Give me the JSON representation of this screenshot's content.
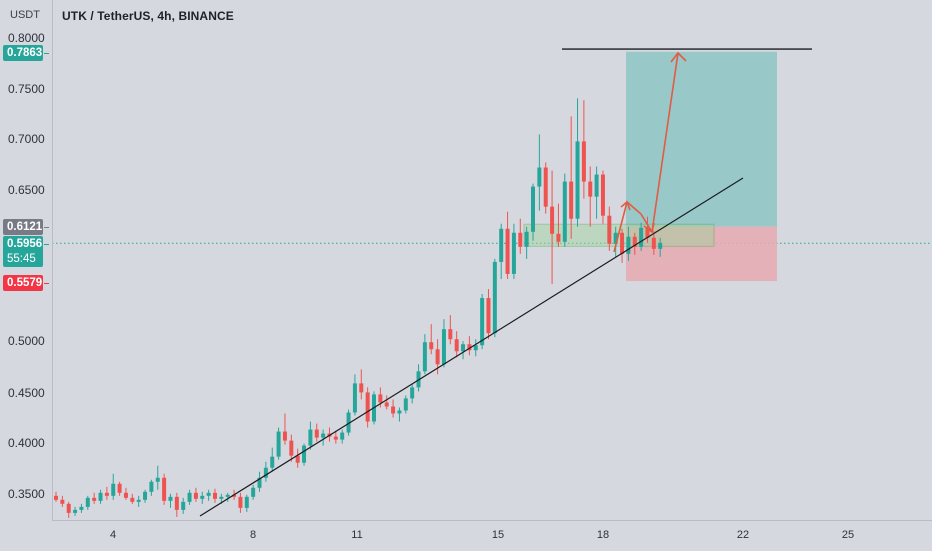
{
  "header": {
    "currency": "USDT",
    "title": "UTK / TetherUS, 4h, BINANCE"
  },
  "price_axis": {
    "ticks": [
      "0.8000",
      "0.7500",
      "0.7000",
      "0.6500",
      "0.5000",
      "0.4500",
      "0.4000",
      "0.3500"
    ],
    "tick_values": [
      0.8,
      0.75,
      0.7,
      0.65,
      0.5,
      0.45,
      0.4,
      0.35
    ]
  },
  "badges": {
    "target": {
      "value": "0.7863",
      "color": "#26a69a"
    },
    "entry": {
      "value": "0.6121",
      "color": "#787b86"
    },
    "last": {
      "value": "0.5956",
      "countdown": "55:45",
      "color": "#26a69a"
    },
    "stop": {
      "value": "0.5579",
      "color": "#f23645"
    }
  },
  "time_axis": {
    "ticks": [
      "4",
      "8",
      "11",
      "15",
      "18",
      "22",
      "25"
    ]
  },
  "colors": {
    "up": "#26a69a",
    "down": "#ef5350",
    "profit_zone": "#8ec6c4",
    "loss_zone": "#e5aab0",
    "trendline": "#1b1c20",
    "arrows": "#e05c45"
  },
  "chart_data": {
    "type": "candlestick",
    "title": "UTK / TetherUS, 4h, BINANCE",
    "ylabel": "USDT",
    "ylim": [
      0.322,
      0.82
    ],
    "x_ticks": [
      "4",
      "8",
      "11",
      "15",
      "18",
      "22",
      "25"
    ],
    "candles": [
      [
        0.344,
        0.348,
        0.338,
        0.34
      ],
      [
        0.34,
        0.344,
        0.333,
        0.336
      ],
      [
        0.336,
        0.338,
        0.322,
        0.327
      ],
      [
        0.327,
        0.333,
        0.324,
        0.33
      ],
      [
        0.33,
        0.336,
        0.327,
        0.333
      ],
      [
        0.333,
        0.344,
        0.33,
        0.342
      ],
      [
        0.342,
        0.347,
        0.336,
        0.339
      ],
      [
        0.339,
        0.35,
        0.336,
        0.347
      ],
      [
        0.347,
        0.353,
        0.34,
        0.344
      ],
      [
        0.344,
        0.366,
        0.34,
        0.356
      ],
      [
        0.356,
        0.358,
        0.344,
        0.347
      ],
      [
        0.347,
        0.352,
        0.34,
        0.342
      ],
      [
        0.342,
        0.346,
        0.336,
        0.338
      ],
      [
        0.338,
        0.344,
        0.333,
        0.34
      ],
      [
        0.34,
        0.35,
        0.337,
        0.348
      ],
      [
        0.348,
        0.36,
        0.344,
        0.358
      ],
      [
        0.358,
        0.374,
        0.35,
        0.362
      ],
      [
        0.362,
        0.366,
        0.335,
        0.339
      ],
      [
        0.339,
        0.346,
        0.332,
        0.343
      ],
      [
        0.343,
        0.347,
        0.323,
        0.33
      ],
      [
        0.33,
        0.342,
        0.326,
        0.338
      ],
      [
        0.338,
        0.35,
        0.335,
        0.347
      ],
      [
        0.347,
        0.352,
        0.338,
        0.341
      ],
      [
        0.341,
        0.348,
        0.336,
        0.344
      ],
      [
        0.344,
        0.35,
        0.339,
        0.347
      ],
      [
        0.347,
        0.351,
        0.337,
        0.341
      ],
      [
        0.341,
        0.346,
        0.336,
        0.343
      ],
      [
        0.343,
        0.347,
        0.338,
        0.345
      ],
      [
        0.345,
        0.35,
        0.34,
        0.343
      ],
      [
        0.343,
        0.347,
        0.327,
        0.332
      ],
      [
        0.332,
        0.345,
        0.328,
        0.343
      ],
      [
        0.343,
        0.355,
        0.34,
        0.352
      ],
      [
        0.352,
        0.368,
        0.348,
        0.362
      ],
      [
        0.362,
        0.378,
        0.358,
        0.372
      ],
      [
        0.372,
        0.392,
        0.368,
        0.383
      ],
      [
        0.383,
        0.412,
        0.38,
        0.408
      ],
      [
        0.408,
        0.426,
        0.395,
        0.399
      ],
      [
        0.399,
        0.405,
        0.378,
        0.384
      ],
      [
        0.384,
        0.391,
        0.372,
        0.377
      ],
      [
        0.377,
        0.396,
        0.374,
        0.394
      ],
      [
        0.394,
        0.418,
        0.39,
        0.41
      ],
      [
        0.41,
        0.416,
        0.398,
        0.402
      ],
      [
        0.402,
        0.41,
        0.394,
        0.406
      ],
      [
        0.406,
        0.412,
        0.398,
        0.403
      ],
      [
        0.403,
        0.409,
        0.396,
        0.4
      ],
      [
        0.4,
        0.41,
        0.396,
        0.407
      ],
      [
        0.407,
        0.43,
        0.404,
        0.427
      ],
      [
        0.427,
        0.465,
        0.424,
        0.456
      ],
      [
        0.456,
        0.47,
        0.44,
        0.447
      ],
      [
        0.447,
        0.452,
        0.412,
        0.418
      ],
      [
        0.418,
        0.448,
        0.415,
        0.445
      ],
      [
        0.445,
        0.452,
        0.432,
        0.437
      ],
      [
        0.437,
        0.444,
        0.43,
        0.433
      ],
      [
        0.433,
        0.44,
        0.422,
        0.426
      ],
      [
        0.426,
        0.432,
        0.418,
        0.429
      ],
      [
        0.429,
        0.444,
        0.426,
        0.441
      ],
      [
        0.441,
        0.455,
        0.436,
        0.452
      ],
      [
        0.452,
        0.475,
        0.448,
        0.468
      ],
      [
        0.468,
        0.505,
        0.465,
        0.497
      ],
      [
        0.497,
        0.515,
        0.485,
        0.49
      ],
      [
        0.49,
        0.5,
        0.465,
        0.475
      ],
      [
        0.475,
        0.52,
        0.472,
        0.51
      ],
      [
        0.51,
        0.524,
        0.495,
        0.5
      ],
      [
        0.5,
        0.508,
        0.482,
        0.488
      ],
      [
        0.488,
        0.498,
        0.48,
        0.495
      ],
      [
        0.495,
        0.503,
        0.484,
        0.489
      ],
      [
        0.489,
        0.5,
        0.483,
        0.494
      ],
      [
        0.494,
        0.545,
        0.49,
        0.541
      ],
      [
        0.541,
        0.55,
        0.5,
        0.506
      ],
      [
        0.506,
        0.58,
        0.502,
        0.577
      ],
      [
        0.577,
        0.615,
        0.56,
        0.61
      ],
      [
        0.61,
        0.627,
        0.56,
        0.565
      ],
      [
        0.565,
        0.615,
        0.56,
        0.606
      ],
      [
        0.606,
        0.62,
        0.585,
        0.592
      ],
      [
        0.592,
        0.612,
        0.58,
        0.607
      ],
      [
        0.607,
        0.655,
        0.598,
        0.652
      ],
      [
        0.652,
        0.704,
        0.628,
        0.671
      ],
      [
        0.671,
        0.676,
        0.625,
        0.632
      ],
      [
        0.632,
        0.668,
        0.555,
        0.605
      ],
      [
        0.605,
        0.635,
        0.592,
        0.597
      ],
      [
        0.597,
        0.665,
        0.592,
        0.657
      ],
      [
        0.657,
        0.722,
        0.6,
        0.62
      ],
      [
        0.62,
        0.74,
        0.612,
        0.697
      ],
      [
        0.697,
        0.738,
        0.64,
        0.657
      ],
      [
        0.657,
        0.672,
        0.612,
        0.642
      ],
      [
        0.642,
        0.672,
        0.62,
        0.664
      ],
      [
        0.664,
        0.668,
        0.615,
        0.623
      ],
      [
        0.623,
        0.632,
        0.588,
        0.595
      ],
      [
        0.595,
        0.612,
        0.582,
        0.606
      ],
      [
        0.606,
        0.61,
        0.576,
        0.585
      ],
      [
        0.585,
        0.612,
        0.578,
        0.602
      ],
      [
        0.602,
        0.606,
        0.584,
        0.592
      ],
      [
        0.592,
        0.616,
        0.588,
        0.611
      ],
      [
        0.611,
        0.622,
        0.596,
        0.601
      ],
      [
        0.601,
        0.608,
        0.584,
        0.59
      ],
      [
        0.59,
        0.601,
        0.582,
        0.596
      ]
    ],
    "trendline": {
      "from": [
        0.327,
        "candle 19"
      ],
      "to": [
        0.661,
        "beyond candle 120"
      ]
    },
    "position": {
      "entry": 0.6121,
      "target": 0.7863,
      "stop": 0.5579,
      "last": 0.5956
    },
    "horizontal_target_line": 0.789
  }
}
